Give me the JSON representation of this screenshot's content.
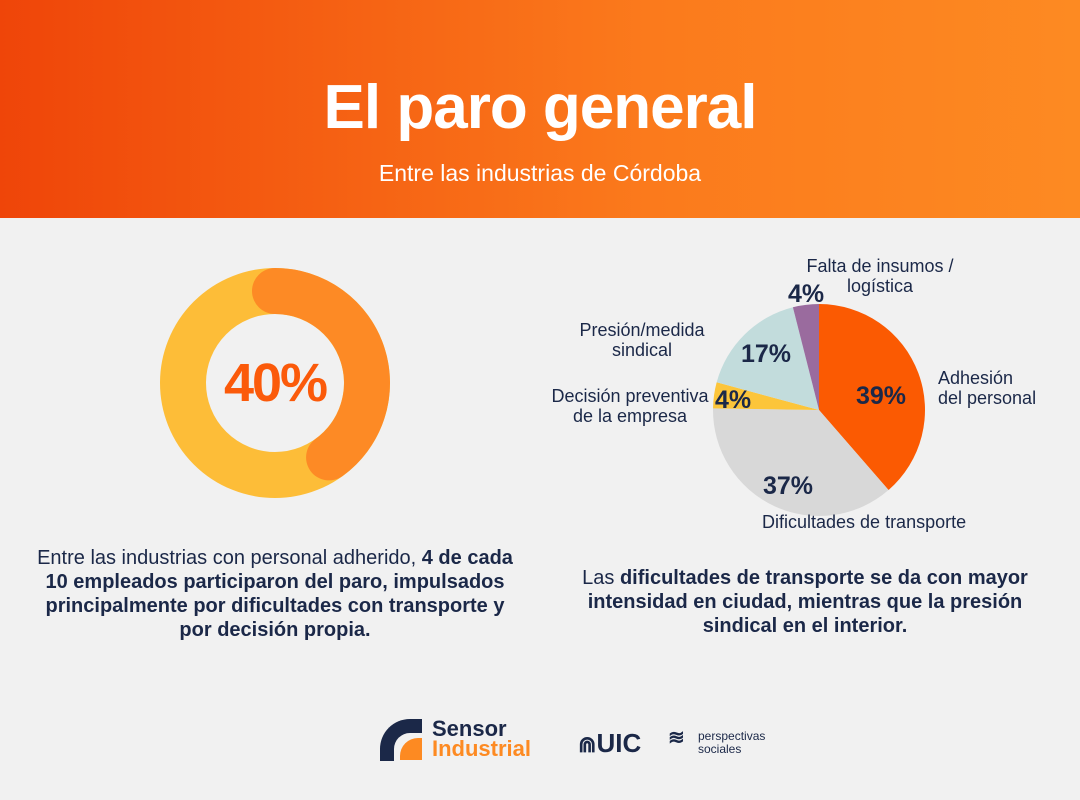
{
  "header": {
    "title": "El paro general",
    "subtitle": "Entre las industrias de Córdoba"
  },
  "colors": {
    "header_start": "#ef4509",
    "header_end": "#fd8a22",
    "text": "#1b2848"
  },
  "chart_data": [
    {
      "type": "donut",
      "value_percent": 40,
      "label": "40%",
      "colors": {
        "value": "#fd8a25",
        "rest": "#fdbd38",
        "label": "#fb5a0a"
      }
    },
    {
      "type": "pie",
      "slices": [
        {
          "label": "Adhesión del personal",
          "value": 39,
          "value_label": "39%",
          "color": "#fb5a02"
        },
        {
          "label": "Dificultades de transporte",
          "value": 37,
          "value_label": "37%",
          "color": "#d8d8d8"
        },
        {
          "label": "Decisión preventiva de la empresa",
          "value": 4,
          "value_label": "4%",
          "color": "#fcc53a"
        },
        {
          "label": "Presión/medida sindical",
          "value": 17,
          "value_label": "17%",
          "color": "#c2dcdc"
        },
        {
          "label": "Falta de insumos / logística",
          "value": 4,
          "value_label": "4%",
          "color": "#9a6b9e"
        }
      ]
    }
  ],
  "left_text": {
    "normal": "Entre las industrias con personal adherido, ",
    "bold": "4 de cada 10 empleados participaron del paro, impulsados principalmente por dificultades con transporte y por decisión propia."
  },
  "right_text": {
    "normal": "Las ",
    "bold": "dificultades de transporte se da con mayor intensidad en ciudad, mientras que la presión sindical en el interior."
  },
  "logos": {
    "sensor_line1": "Sensor",
    "sensor_line2": "Industrial",
    "uic": "UIC",
    "perspectivas_line1": "perspectivas",
    "perspectivas_line2": "sociales"
  }
}
